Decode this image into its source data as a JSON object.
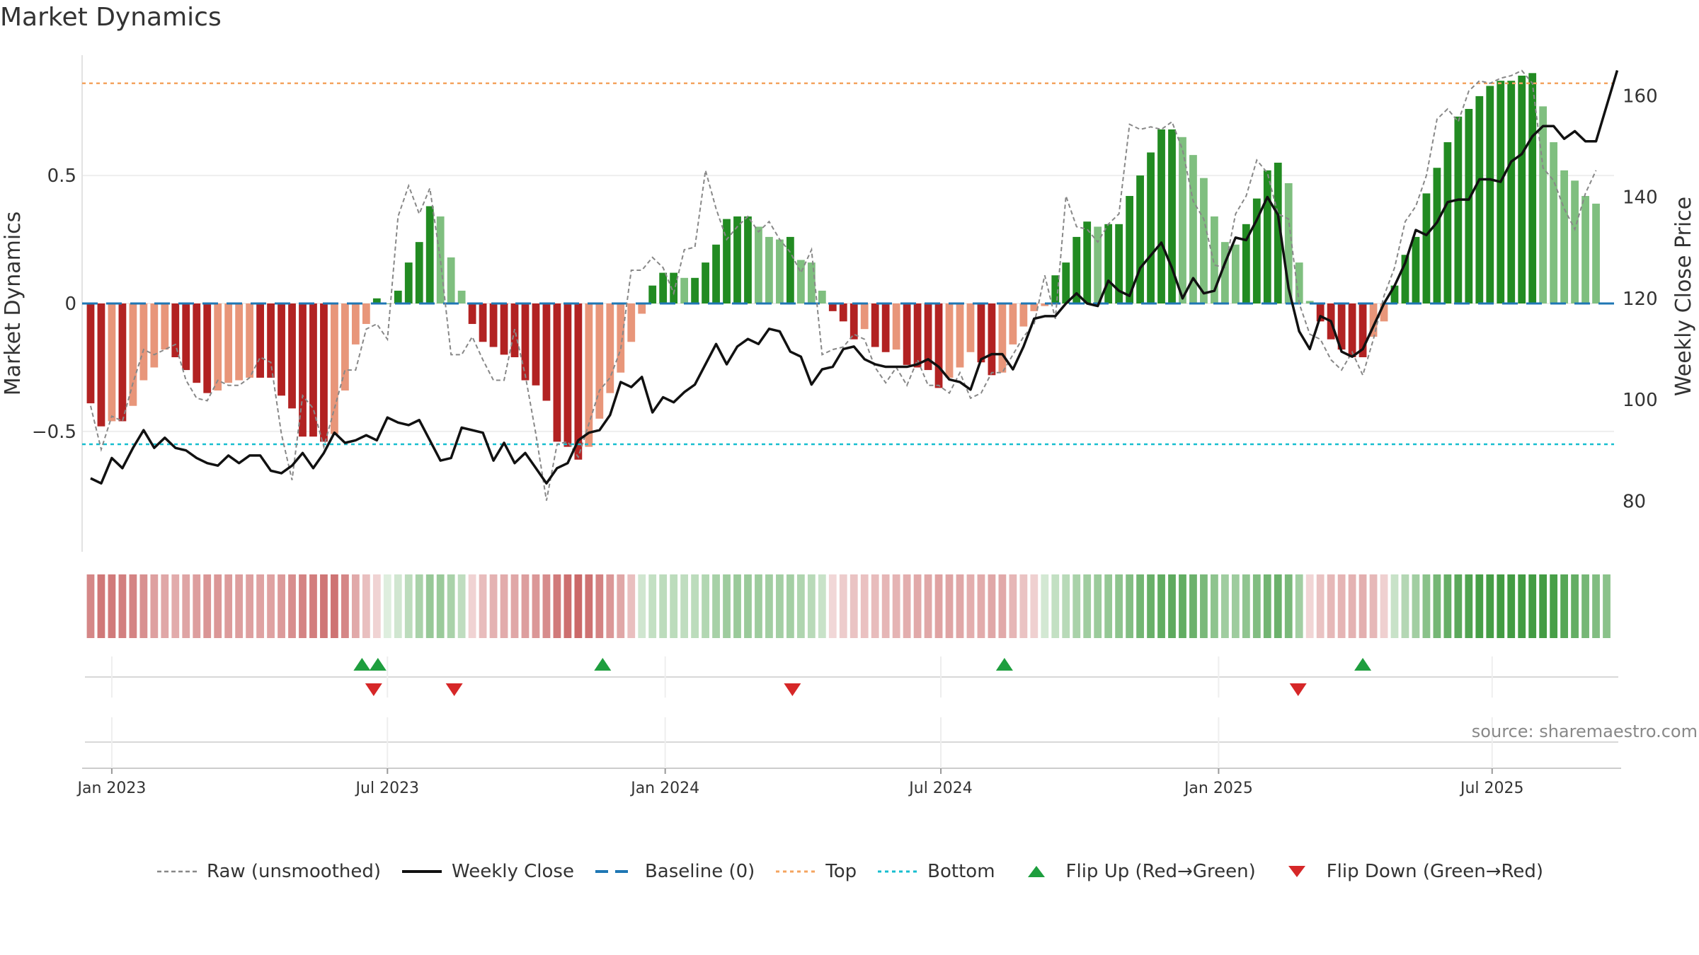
{
  "title": "Market Dynamics",
  "source": "source: sharemaestro.com",
  "colors": {
    "strong_green": "#228B22",
    "light_green": "#7FBF7F",
    "strong_red": "#B22222",
    "light_red": "#E8967A",
    "close": "#111111",
    "raw": "#888888",
    "baseline": "#1F77B4",
    "top": "#F4A460",
    "bottom": "#17BECF",
    "flip_up": "#1E9E3E",
    "flip_down": "#D62728"
  },
  "legend": [
    {
      "label": "Raw (unsmoothed)",
      "style": "raw"
    },
    {
      "label": "Weekly Close",
      "style": "close"
    },
    {
      "label": "Baseline (0)",
      "style": "baseline"
    },
    {
      "label": "Top",
      "style": "top"
    },
    {
      "label": "Bottom",
      "style": "bottom"
    },
    {
      "label": "Flip Up (Red→Green)",
      "style": "flip_up"
    },
    {
      "label": "Flip Down (Green→Red)",
      "style": "flip_down"
    }
  ],
  "chart_data": {
    "type": "bar",
    "title": "Market Dynamics",
    "ylabel": "Market Dynamics",
    "y2label": "Weekly Close Price",
    "ylim": [
      -0.97,
      0.97
    ],
    "y2lim": [
      70,
      168
    ],
    "yticks": [
      {
        "v": 0.5,
        "label": "0.5"
      },
      {
        "v": 0,
        "label": "0"
      },
      {
        "v": -0.5,
        "label": "−0.5"
      }
    ],
    "y2ticks": [
      {
        "v": 160,
        "label": "160"
      },
      {
        "v": 140,
        "label": "140"
      },
      {
        "v": 120,
        "label": "120"
      },
      {
        "v": 100,
        "label": "100"
      },
      {
        "v": 80,
        "label": "80"
      }
    ],
    "top_level": 0.86,
    "bottom_level": -0.55,
    "baseline": 0,
    "start_date": "2022-12-26",
    "x_range_weeks": [
      -0.8,
      143.7
    ],
    "xticks": [
      {
        "week": 2,
        "label": "Jan 2023"
      },
      {
        "week": 28,
        "label": "Jul 2023"
      },
      {
        "week": 54.2,
        "label": "Jan 2024"
      },
      {
        "week": 80.2,
        "label": "Jul 2024"
      },
      {
        "week": 106.4,
        "label": "Jan 2025"
      },
      {
        "week": 132.2,
        "label": "Jul 2025"
      }
    ],
    "series": [
      {
        "name": "Market Dynamics",
        "values": [
          -0.39,
          -0.48,
          -0.46,
          -0.46,
          -0.4,
          -0.3,
          -0.25,
          -0.18,
          -0.21,
          -0.26,
          -0.31,
          -0.35,
          -0.34,
          -0.31,
          -0.3,
          -0.29,
          -0.29,
          -0.29,
          -0.36,
          -0.41,
          -0.52,
          -0.52,
          -0.54,
          -0.51,
          -0.34,
          -0.16,
          -0.08,
          0.02,
          0.0,
          0.05,
          0.16,
          0.24,
          0.38,
          0.34,
          0.18,
          0.05,
          -0.08,
          -0.15,
          -0.17,
          -0.2,
          -0.21,
          -0.3,
          -0.32,
          -0.38,
          -0.54,
          -0.56,
          -0.61,
          -0.56,
          -0.45,
          -0.35,
          -0.27,
          -0.15,
          -0.04,
          0.07,
          0.12,
          0.12,
          0.1,
          0.1,
          0.16,
          0.23,
          0.33,
          0.34,
          0.34,
          0.3,
          0.26,
          0.25,
          0.26,
          0.17,
          0.16,
          0.05,
          -0.03,
          -0.07,
          -0.14,
          -0.1,
          -0.17,
          -0.19,
          -0.18,
          -0.24,
          -0.25,
          -0.26,
          -0.33,
          -0.29,
          -0.25,
          -0.19,
          -0.23,
          -0.28,
          -0.27,
          -0.16,
          -0.09,
          -0.03,
          -0.01,
          0.11,
          0.16,
          0.26,
          0.32,
          0.3,
          0.31,
          0.31,
          0.42,
          0.5,
          0.59,
          0.68,
          0.68,
          0.65,
          0.58,
          0.49,
          0.34,
          0.24,
          0.23,
          0.31,
          0.41,
          0.52,
          0.55,
          0.47,
          0.16,
          0.01,
          -0.07,
          -0.14,
          -0.18,
          -0.21,
          -0.21,
          -0.13,
          -0.07,
          0.07,
          0.19,
          0.26,
          0.43,
          0.53,
          0.63,
          0.73,
          0.76,
          0.81,
          0.85,
          0.87,
          0.87,
          0.89,
          0.9,
          0.77,
          0.63,
          0.52,
          0.48,
          0.42,
          0.39
        ]
      },
      {
        "name": "Raw (unsmoothed)",
        "values": [
          -0.4,
          -0.57,
          -0.44,
          -0.46,
          -0.31,
          -0.18,
          -0.2,
          -0.18,
          -0.16,
          -0.3,
          -0.37,
          -0.38,
          -0.3,
          -0.32,
          -0.32,
          -0.29,
          -0.21,
          -0.23,
          -0.51,
          -0.69,
          -0.36,
          -0.41,
          -0.56,
          -0.41,
          -0.26,
          -0.26,
          -0.1,
          -0.08,
          -0.14,
          0.34,
          0.46,
          0.35,
          0.45,
          0.17,
          -0.2,
          -0.2,
          -0.13,
          -0.22,
          -0.3,
          -0.3,
          -0.1,
          -0.28,
          -0.51,
          -0.77,
          -0.55,
          -0.54,
          -0.6,
          -0.47,
          -0.34,
          -0.29,
          -0.18,
          0.13,
          0.13,
          0.18,
          0.14,
          0.04,
          0.21,
          0.22,
          0.52,
          0.37,
          0.25,
          0.3,
          0.34,
          0.28,
          0.32,
          0.25,
          0.2,
          0.12,
          0.21,
          -0.2,
          -0.18,
          -0.17,
          -0.12,
          -0.14,
          -0.25,
          -0.31,
          -0.25,
          -0.32,
          -0.22,
          -0.32,
          -0.32,
          -0.35,
          -0.27,
          -0.37,
          -0.35,
          -0.27,
          -0.27,
          -0.2,
          -0.13,
          -0.08,
          0.11,
          -0.06,
          0.42,
          0.3,
          0.29,
          0.24,
          0.31,
          0.35,
          0.7,
          0.68,
          0.69,
          0.68,
          0.71,
          0.6,
          0.4,
          0.33,
          0.15,
          0.14,
          0.35,
          0.42,
          0.56,
          0.51,
          0.35,
          0.33,
          0.0,
          -0.12,
          -0.14,
          -0.22,
          -0.26,
          -0.19,
          -0.28,
          -0.14,
          0.03,
          0.14,
          0.32,
          0.38,
          0.5,
          0.72,
          0.76,
          0.71,
          0.83,
          0.87,
          0.86,
          0.88,
          0.89,
          0.91,
          0.86,
          0.53,
          0.48,
          0.37,
          0.29,
          0.43,
          0.52
        ]
      },
      {
        "name": "Weekly Close",
        "values": [
          84.5,
          83.5,
          88.5,
          86.5,
          90.5,
          94.0,
          90.5,
          92.5,
          90.5,
          90.0,
          88.5,
          87.5,
          87.0,
          89.0,
          87.5,
          89.0,
          89.0,
          86.0,
          85.5,
          87.0,
          89.5,
          86.5,
          89.5,
          93.5,
          91.5,
          92.0,
          93.0,
          92.0,
          96.5,
          95.5,
          95.0,
          96.0,
          92.0,
          88.0,
          88.5,
          94.5,
          94.0,
          93.5,
          88.0,
          91.5,
          87.5,
          89.5,
          86.5,
          83.5,
          86.5,
          87.5,
          92.0,
          93.5,
          94.0,
          97.0,
          103.5,
          102.5,
          104.5,
          97.5,
          100.5,
          99.5,
          101.5,
          103.0,
          107.0,
          111.0,
          107.0,
          110.5,
          112.0,
          111.0,
          114.0,
          113.5,
          109.5,
          108.5,
          103.0,
          106.0,
          106.5,
          110.0,
          110.5,
          108.0,
          107.0,
          106.5,
          106.5,
          106.5,
          107.0,
          108.0,
          106.5,
          104.0,
          103.5,
          102.0,
          108.0,
          109.0,
          109.0,
          106.0,
          110.5,
          116.0,
          116.5,
          116.5,
          119.0,
          121.0,
          119.0,
          118.5,
          123.5,
          121.5,
          120.5,
          126.0,
          128.5,
          131.0,
          126.0,
          120.0,
          124.0,
          121.0,
          121.5,
          127.0,
          132.0,
          131.5,
          135.5,
          140.0,
          136.5,
          122.0,
          113.5,
          110.0,
          116.5,
          115.5,
          109.5,
          108.5,
          110.0,
          114.5,
          119.0,
          122.5,
          127.0,
          133.5,
          132.5,
          135.0,
          139.0,
          139.5,
          139.5,
          143.5,
          143.5,
          143.0,
          147.0,
          148.5,
          152.0,
          154.0,
          154.0,
          151.5,
          153.0,
          151.0,
          151.0,
          158.0,
          165.0
        ]
      }
    ],
    "strip_values": [
      -0.41,
      -0.49,
      -0.48,
      -0.46,
      -0.44,
      -0.37,
      -0.3,
      -0.26,
      -0.24,
      -0.27,
      -0.31,
      -0.35,
      -0.34,
      -0.32,
      -0.31,
      -0.3,
      -0.29,
      -0.29,
      -0.33,
      -0.38,
      -0.44,
      -0.47,
      -0.5,
      -0.51,
      -0.42,
      -0.25,
      -0.15,
      -0.05,
      0.0,
      0.06,
      0.16,
      0.25,
      0.34,
      0.33,
      0.25,
      0.15,
      -0.05,
      -0.16,
      -0.21,
      -0.24,
      -0.26,
      -0.31,
      -0.34,
      -0.39,
      -0.48,
      -0.53,
      -0.56,
      -0.52,
      -0.43,
      -0.34,
      -0.26,
      -0.15,
      0.06,
      0.12,
      0.16,
      0.16,
      0.15,
      0.16,
      0.21,
      0.26,
      0.31,
      0.33,
      0.33,
      0.31,
      0.29,
      0.27,
      0.27,
      0.22,
      0.18,
      0.1,
      -0.03,
      -0.08,
      -0.12,
      -0.14,
      -0.16,
      -0.19,
      -0.2,
      -0.23,
      -0.25,
      -0.26,
      -0.29,
      -0.28,
      -0.26,
      -0.23,
      -0.24,
      -0.26,
      -0.25,
      -0.19,
      -0.12,
      -0.06,
      0.05,
      0.12,
      0.18,
      0.25,
      0.3,
      0.32,
      0.35,
      0.38,
      0.44,
      0.51,
      0.56,
      0.6,
      0.62,
      0.6,
      0.55,
      0.48,
      0.38,
      0.3,
      0.31,
      0.37,
      0.45,
      0.52,
      0.55,
      0.48,
      0.29,
      -0.04,
      -0.12,
      -0.18,
      -0.2,
      -0.21,
      -0.22,
      -0.18,
      -0.06,
      0.1,
      0.2,
      0.29,
      0.4,
      0.5,
      0.57,
      0.63,
      0.68,
      0.72,
      0.74,
      0.76,
      0.77,
      0.78,
      0.78,
      0.76,
      0.72,
      0.65,
      0.58,
      0.5,
      0.45,
      0.4
    ],
    "flips_up": [
      25.6,
      27.1,
      48.3,
      86.2,
      120.0
    ],
    "flips_down": [
      26.7,
      34.3,
      66.2,
      113.9
    ]
  }
}
